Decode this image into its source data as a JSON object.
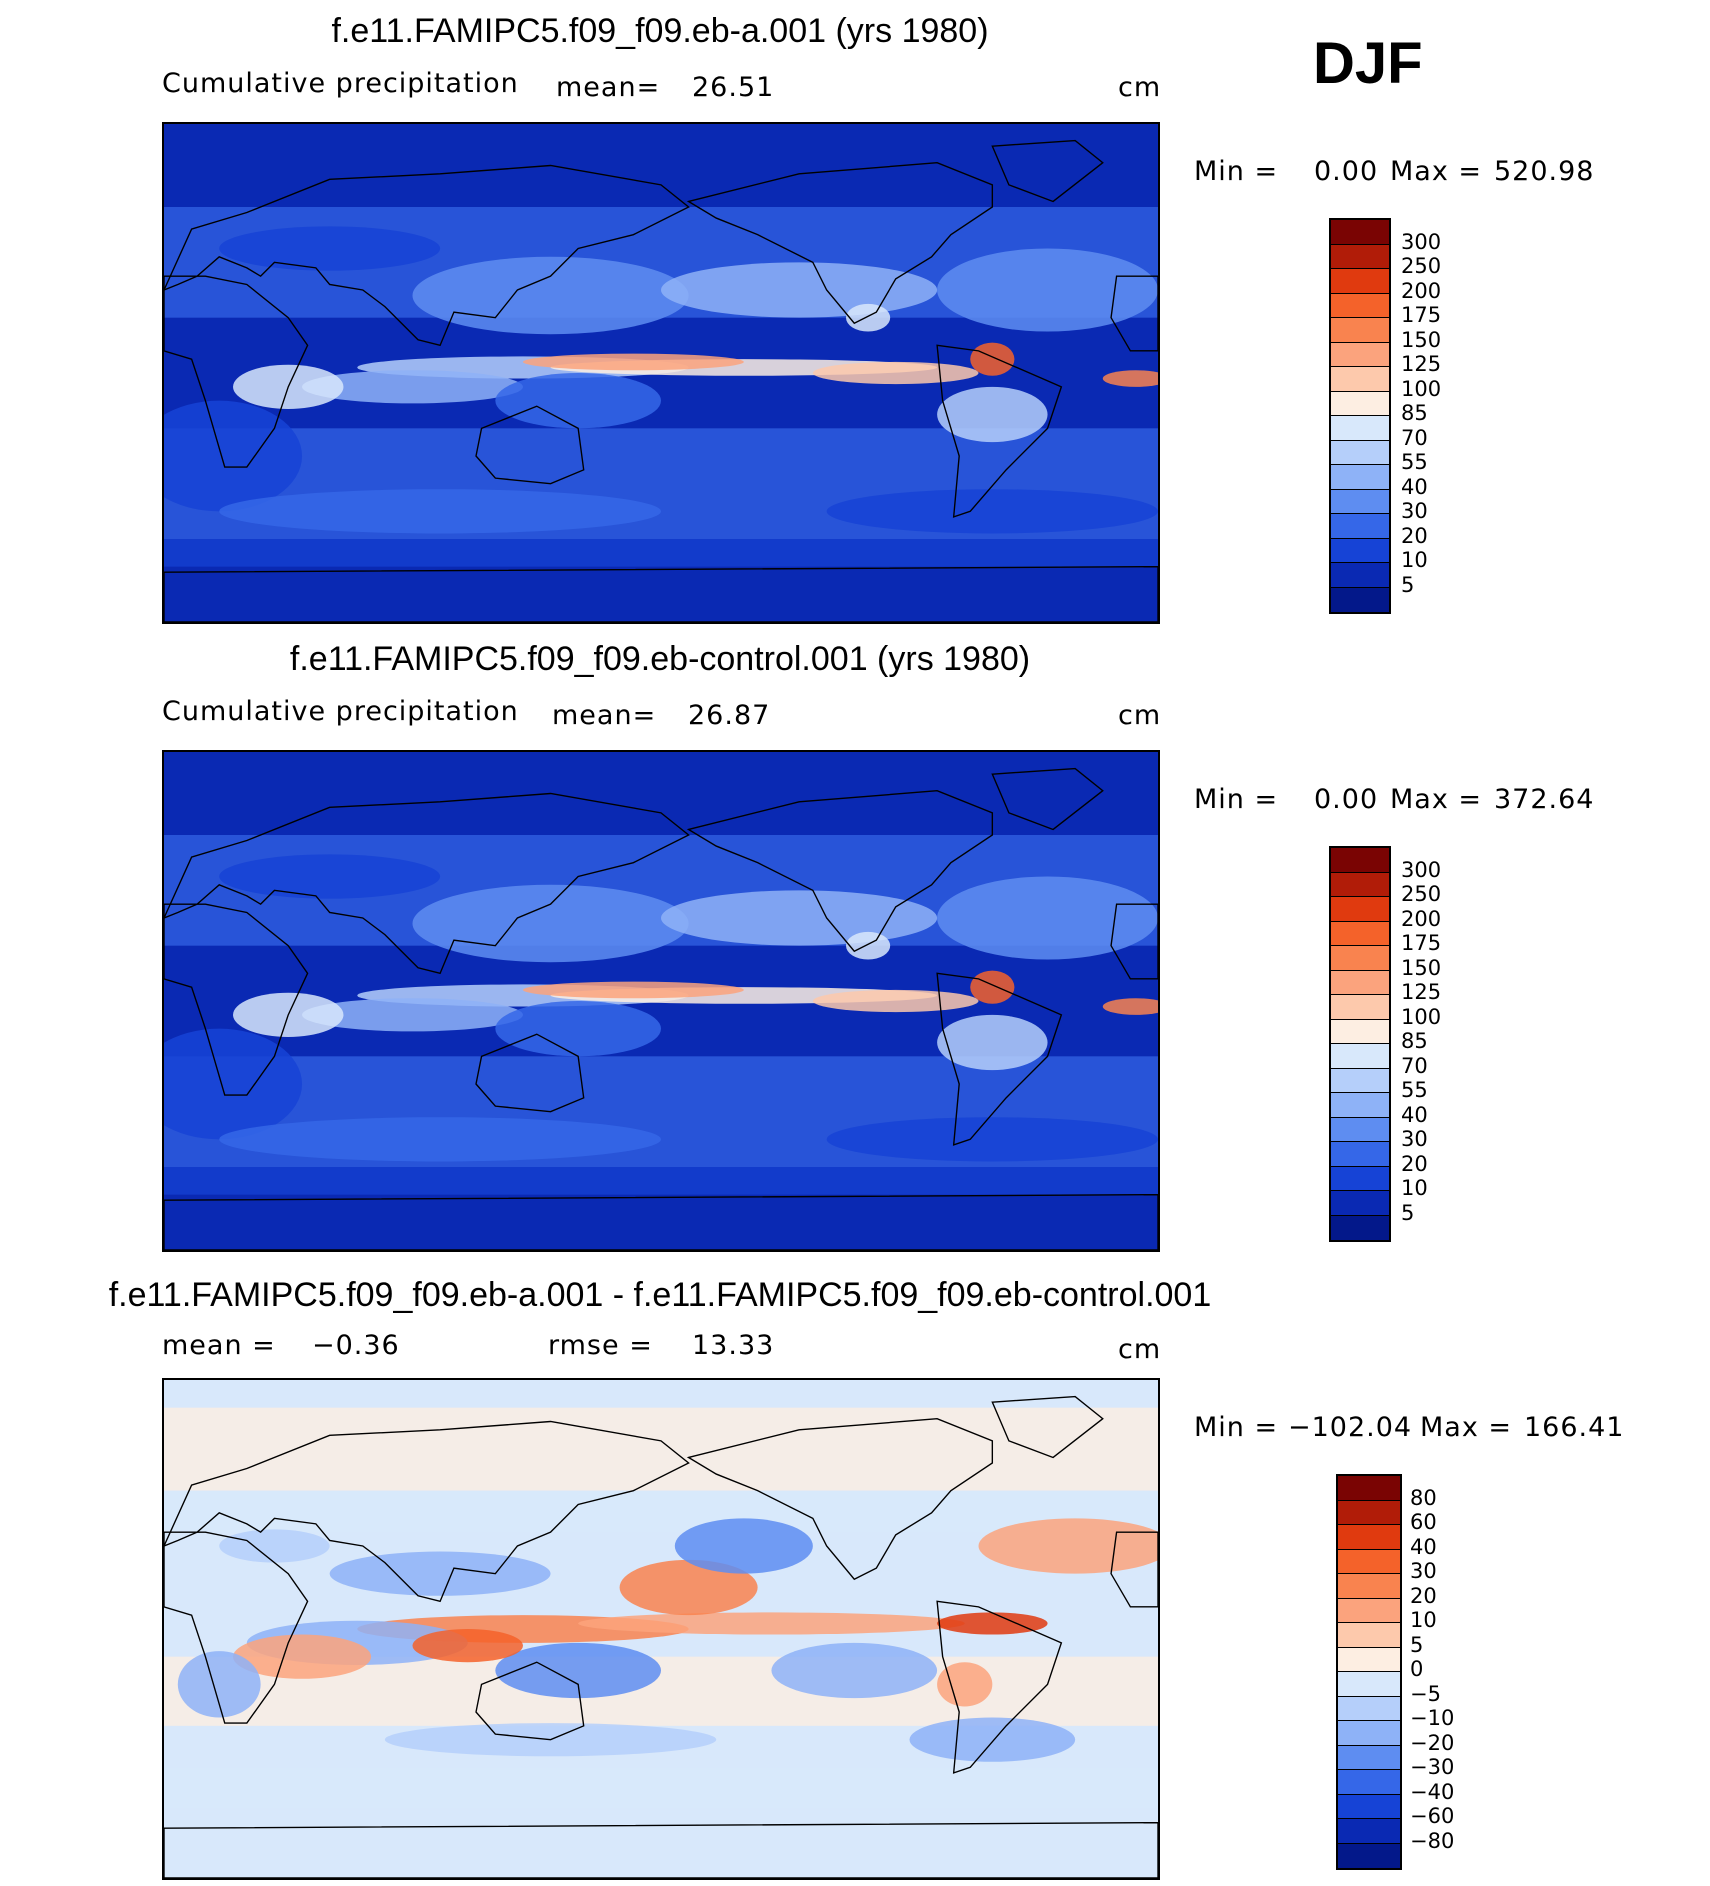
{
  "season": "DJF",
  "panels": [
    {
      "title": "f.e11.FAMIPC5.f09_f09.eb-a.001 (yrs 1980)",
      "left_label": "Cumulative precipitation",
      "stat1_label": "mean=",
      "stat1_value": "26.51",
      "stat2_label": "",
      "stat2_value": "",
      "units": "cm",
      "min_label": "Min =",
      "min_value": "0.00",
      "max_label": "Max =",
      "max_value": "520.98",
      "colorbar": {
        "ticks": [
          "300",
          "250",
          "200",
          "175",
          "150",
          "125",
          "100",
          "85",
          "70",
          "55",
          "40",
          "30",
          "20",
          "10",
          "5"
        ],
        "colors": [
          "#7a0403",
          "#b11c08",
          "#e03a0f",
          "#f4622a",
          "#f9834f",
          "#fba37d",
          "#fdc9ac",
          "#fdeee2",
          "#d8e8fb",
          "#b5cffa",
          "#8eb2f7",
          "#5e8df1",
          "#3567e8",
          "#1643d6",
          "#0a29b3",
          "#03188a"
        ]
      }
    },
    {
      "title": "f.e11.FAMIPC5.f09_f09.eb-control.001 (yrs 1980)",
      "left_label": "Cumulative precipitation",
      "stat1_label": "mean=",
      "stat1_value": "26.87",
      "stat2_label": "",
      "stat2_value": "",
      "units": "cm",
      "min_label": "Min =",
      "min_value": "0.00",
      "max_label": "Max =",
      "max_value": "372.64",
      "colorbar": {
        "ticks": [
          "300",
          "250",
          "200",
          "175",
          "150",
          "125",
          "100",
          "85",
          "70",
          "55",
          "40",
          "30",
          "20",
          "10",
          "5"
        ],
        "colors": [
          "#7a0403",
          "#b11c08",
          "#e03a0f",
          "#f4622a",
          "#f9834f",
          "#fba37d",
          "#fdc9ac",
          "#fdeee2",
          "#d8e8fb",
          "#b5cffa",
          "#8eb2f7",
          "#5e8df1",
          "#3567e8",
          "#1643d6",
          "#0a29b3",
          "#03188a"
        ]
      }
    },
    {
      "title": "f.e11.FAMIPC5.f09_f09.eb-a.001 - f.e11.FAMIPC5.f09_f09.eb-control.001",
      "left_label": "",
      "stat1_label": "mean =",
      "stat1_value": "−0.36",
      "stat2_label": "rmse =",
      "stat2_value": "13.33",
      "units": "cm",
      "min_label": "Min =",
      "min_value": "−102.04",
      "max_label": "Max =",
      "max_value": "166.41",
      "colorbar": {
        "ticks": [
          "80",
          "60",
          "40",
          "30",
          "20",
          "10",
          "5",
          "0",
          "−5",
          "−10",
          "−20",
          "−30",
          "−40",
          "−60",
          "−80"
        ],
        "colors": [
          "#7a0403",
          "#b11c08",
          "#e03a0f",
          "#f4622a",
          "#f9834f",
          "#fba37d",
          "#fdc9ac",
          "#fdeee2",
          "#d8e8fb",
          "#b5cffa",
          "#8eb2f7",
          "#5e8df1",
          "#3567e8",
          "#1643d6",
          "#0a29b3",
          "#03188a"
        ]
      }
    }
  ]
}
